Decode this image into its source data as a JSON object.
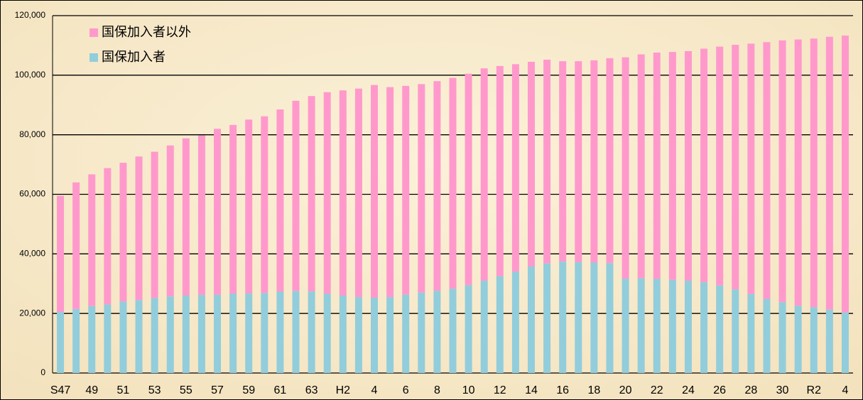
{
  "chart_data": {
    "type": "stacked_bar",
    "categories": [
      "S47",
      null,
      "49",
      null,
      "51",
      null,
      "53",
      null,
      "55",
      null,
      "57",
      null,
      "59",
      null,
      "61",
      null,
      "63",
      null,
      "H2",
      null,
      "4",
      null,
      "6",
      null,
      "8",
      null,
      "10",
      null,
      "12",
      null,
      "14",
      null,
      "16",
      null,
      "18",
      null,
      "20",
      null,
      "22",
      null,
      "24",
      null,
      "26",
      null,
      "28",
      null,
      "30",
      null,
      "R2",
      null,
      "4"
    ],
    "series": [
      {
        "name": "国保加入者",
        "color": "#92cddc",
        "values": [
          20500,
          21500,
          22500,
          23000,
          24000,
          24500,
          25200,
          25700,
          26000,
          26200,
          26300,
          26600,
          26700,
          26900,
          27300,
          27500,
          27400,
          26600,
          26000,
          25500,
          25300,
          25500,
          26300,
          27000,
          27600,
          28300,
          29500,
          31000,
          32500,
          34000,
          35800,
          36800,
          37400,
          37200,
          37100,
          36900,
          31700,
          31800,
          31600,
          31300,
          31000,
          30500,
          29400,
          28100,
          26500,
          24900,
          23800,
          22600,
          22100,
          21300,
          20300
        ]
      },
      {
        "name": "国保加入者以外",
        "color": "#ff99cc",
        "values": [
          39000,
          42500,
          44200,
          45800,
          46600,
          48200,
          49100,
          50700,
          52800,
          53600,
          55700,
          56700,
          58400,
          59300,
          61200,
          63900,
          65600,
          67700,
          68900,
          70000,
          71400,
          70500,
          70100,
          70000,
          70400,
          70800,
          71000,
          71300,
          70600,
          69700,
          68700,
          68400,
          67300,
          67500,
          67900,
          68800,
          74300,
          75200,
          76000,
          76500,
          77100,
          78400,
          80200,
          82100,
          84100,
          86200,
          87900,
          89400,
          90200,
          91600,
          93000
        ]
      }
    ],
    "ylim": [
      0,
      120000
    ],
    "yticks": [
      0,
      {
        "value": 20000,
        "label": "20,000"
      },
      {
        "value": 40000,
        "label": "40,000"
      },
      {
        "value": 60000,
        "label": "60,000"
      },
      {
        "value": 80000,
        "label": "80,000"
      },
      {
        "value": 100000,
        "label": "100,000"
      },
      {
        "value": 120000,
        "label": "120,000"
      }
    ],
    "grid": true,
    "legend": "top-left"
  }
}
